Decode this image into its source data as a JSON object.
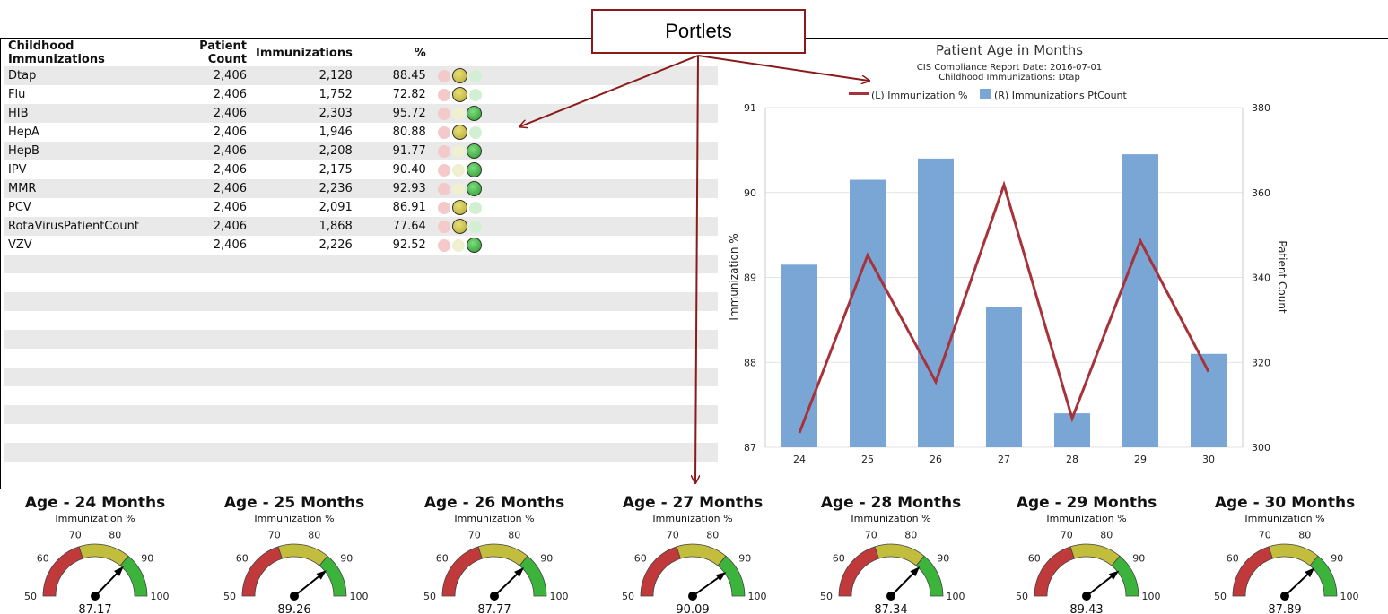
{
  "callout": {
    "label": "Portlets"
  },
  "table": {
    "headers": [
      "Childhood Immunizations",
      "Patient Count",
      "Immunizations",
      "%"
    ],
    "rows": [
      {
        "name": "Dtap",
        "patient_count": "2,406",
        "immunizations": "2,128",
        "pct": "88.45",
        "status": "yellow"
      },
      {
        "name": "Flu",
        "patient_count": "2,406",
        "immunizations": "1,752",
        "pct": "72.82",
        "status": "yellow"
      },
      {
        "name": "HIB",
        "patient_count": "2,406",
        "immunizations": "2,303",
        "pct": "95.72",
        "status": "green"
      },
      {
        "name": "HepA",
        "patient_count": "2,406",
        "immunizations": "1,946",
        "pct": "80.88",
        "status": "yellow"
      },
      {
        "name": "HepB",
        "patient_count": "2,406",
        "immunizations": "2,208",
        "pct": "91.77",
        "status": "green"
      },
      {
        "name": "IPV",
        "patient_count": "2,406",
        "immunizations": "2,175",
        "pct": "90.40",
        "status": "green"
      },
      {
        "name": "MMR",
        "patient_count": "2,406",
        "immunizations": "2,236",
        "pct": "92.93",
        "status": "green"
      },
      {
        "name": "PCV",
        "patient_count": "2,406",
        "immunizations": "2,091",
        "pct": "86.91",
        "status": "yellow"
      },
      {
        "name": "RotaVirusPatientCount",
        "patient_count": "2,406",
        "immunizations": "1,868",
        "pct": "77.64",
        "status": "yellow"
      },
      {
        "name": "VZV",
        "patient_count": "2,406",
        "immunizations": "2,226",
        "pct": "92.52",
        "status": "green"
      }
    ]
  },
  "colors": {
    "bar": "#7aa6d6",
    "line": "#a8323a",
    "gauge_red": "#c0393b",
    "gauge_yellow": "#c2bd3c",
    "gauge_green": "#3cb43c",
    "arrow": "#8b1a1a"
  },
  "chart_data": {
    "type": "bar",
    "title": "Patient Age in Months",
    "subtitle_lines": [
      "CIS Compliance Report Date: 2016-07-01",
      "Childhood Immunizations: Dtap"
    ],
    "categories": [
      "24",
      "25",
      "26",
      "27",
      "28",
      "29",
      "30"
    ],
    "series": [
      {
        "name": "(L) Immunization %",
        "type": "line",
        "axis": "left",
        "values": [
          87.17,
          89.26,
          87.77,
          90.09,
          87.34,
          89.43,
          87.89
        ]
      },
      {
        "name": "(R) Immunizations PtCount",
        "type": "bar",
        "axis": "right",
        "values": [
          343,
          363,
          368,
          333,
          308,
          369,
          322
        ]
      }
    ],
    "ylabel_left": "Immunization %",
    "ylabel_right": "Patient Count",
    "ylim_left": [
      87,
      91
    ],
    "ylim_right": [
      300,
      380
    ],
    "yticks_left": [
      "87",
      "88",
      "89",
      "90",
      "91"
    ],
    "yticks_right": [
      "300",
      "320",
      "340",
      "360",
      "380"
    ],
    "grid": true,
    "legend": "top"
  },
  "gauges": [
    {
      "title": "Age - 24 Months",
      "subtitle": "Immunization %",
      "value": 87.17,
      "value_label": "87.17"
    },
    {
      "title": "Age - 25 Months",
      "subtitle": "Immunization %",
      "value": 89.26,
      "value_label": "89.26"
    },
    {
      "title": "Age - 26 Months",
      "subtitle": "Immunization %",
      "value": 87.77,
      "value_label": "87.77"
    },
    {
      "title": "Age - 27 Months",
      "subtitle": "Immunization %",
      "value": 90.09,
      "value_label": "90.09"
    },
    {
      "title": "Age - 28 Months",
      "subtitle": "Immunization %",
      "value": 87.34,
      "value_label": "87.34"
    },
    {
      "title": "Age - 29 Months",
      "subtitle": "Immunization %",
      "value": 89.43,
      "value_label": "89.43"
    },
    {
      "title": "Age - 30 Months",
      "subtitle": "Immunization %",
      "value": 87.89,
      "value_label": "87.89"
    }
  ],
  "gauge_scale": {
    "min": 50,
    "max": 100,
    "tick_labels": [
      "50",
      "60",
      "70",
      "80",
      "90",
      "100"
    ],
    "bands": [
      {
        "from": 50,
        "to": 70,
        "color": "red"
      },
      {
        "from": 70,
        "to": 86,
        "color": "yellow"
      },
      {
        "from": 86,
        "to": 100,
        "color": "green"
      }
    ]
  }
}
